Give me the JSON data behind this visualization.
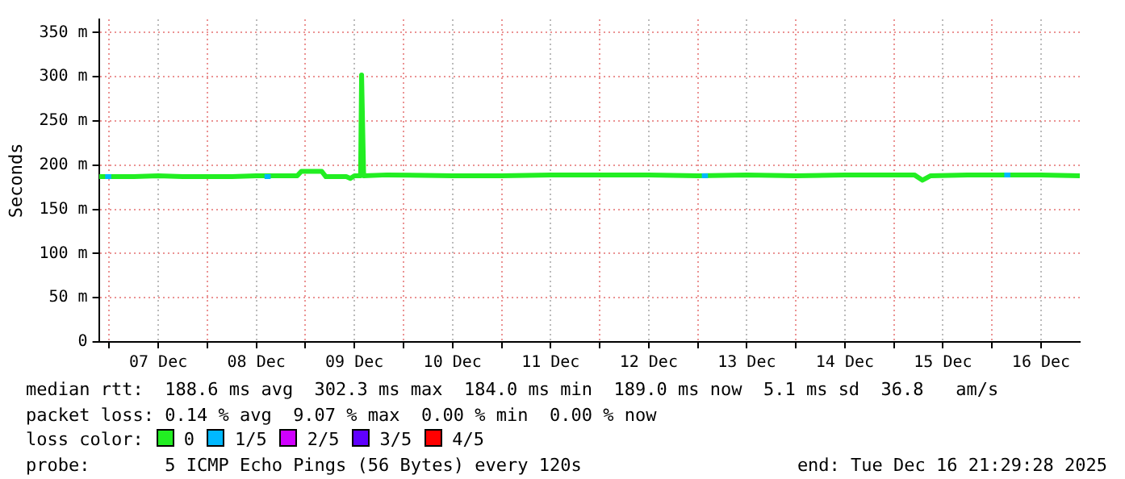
{
  "chart_data": {
    "type": "line",
    "ylabel": "Seconds",
    "legend": "bottom",
    "legend_title": "loss color:",
    "grid": true,
    "marker": "none",
    "line_style": "solid",
    "xlim": [
      "2025-12-06T21:29",
      "2025-12-16T21:29"
    ],
    "xticks": [
      {
        "value": "2025-12-07T00:00",
        "label": null
      },
      {
        "value": "2025-12-07T12:00",
        "label": "07 Dec"
      },
      {
        "value": "2025-12-08T00:00",
        "label": null
      },
      {
        "value": "2025-12-08T12:00",
        "label": "08 Dec"
      },
      {
        "value": "2025-12-09T00:00",
        "label": null
      },
      {
        "value": "2025-12-09T12:00",
        "label": "09 Dec"
      },
      {
        "value": "2025-12-10T00:00",
        "label": null
      },
      {
        "value": "2025-12-10T12:00",
        "label": "10 Dec"
      },
      {
        "value": "2025-12-11T00:00",
        "label": null
      },
      {
        "value": "2025-12-11T12:00",
        "label": "11 Dec"
      },
      {
        "value": "2025-12-12T00:00",
        "label": null
      },
      {
        "value": "2025-12-12T12:00",
        "label": "12 Dec"
      },
      {
        "value": "2025-12-13T00:00",
        "label": null
      },
      {
        "value": "2025-12-13T12:00",
        "label": "13 Dec"
      },
      {
        "value": "2025-12-14T00:00",
        "label": null
      },
      {
        "value": "2025-12-14T12:00",
        "label": "14 Dec"
      },
      {
        "value": "2025-12-15T00:00",
        "label": null
      },
      {
        "value": "2025-12-15T12:00",
        "label": "15 Dec"
      },
      {
        "value": "2025-12-16T00:00",
        "label": null
      },
      {
        "value": "2025-12-16T12:00",
        "label": "16 Dec"
      }
    ],
    "ylim": [
      0,
      365
    ],
    "yticks": [
      0,
      {
        "value": 50,
        "label": "50 m"
      },
      {
        "value": 100,
        "label": "100 m"
      },
      {
        "value": 150,
        "label": "150 m"
      },
      {
        "value": 200,
        "label": "200 m"
      },
      {
        "value": 250,
        "label": "250 m"
      },
      {
        "value": 300,
        "label": "300 m"
      },
      {
        "value": 350,
        "label": "350 m"
      }
    ],
    "series": [
      {
        "name": "0",
        "color": "#22ee22",
        "x": [
          "2025-12-06T21:30",
          "2025-12-07T06:00",
          "2025-12-07T12:00",
          "2025-12-07T18:00",
          "2025-12-08T06:00",
          "2025-12-08T12:00",
          "2025-12-08T22:00",
          "2025-12-08T23:00",
          "2025-12-09T04:00",
          "2025-12-09T05:00",
          "2025-12-09T10:00",
          "2025-12-09T11:00",
          "2025-12-09T12:00",
          "2025-12-09T13:30",
          "2025-12-09T13:45",
          "2025-12-09T14:15",
          "2025-12-09T20:00",
          "2025-12-10T12:00",
          "2025-12-11T00:00",
          "2025-12-11T12:00",
          "2025-12-12T00:00",
          "2025-12-12T12:00",
          "2025-12-13T00:00",
          "2025-12-13T12:00",
          "2025-12-14T00:00",
          "2025-12-14T12:00",
          "2025-12-15T00:00",
          "2025-12-15T05:00",
          "2025-12-15T07:00",
          "2025-12-15T09:00",
          "2025-12-15T18:00",
          "2025-12-16T12:00",
          "2025-12-16T21:29"
        ],
        "values": [
          187,
          187,
          188,
          187,
          187,
          188,
          188,
          193,
          193,
          187,
          187,
          185,
          188,
          188,
          302,
          188,
          189,
          188,
          188,
          189,
          189,
          189,
          188,
          189,
          188,
          189,
          189,
          189,
          183,
          188,
          189,
          189,
          188
        ]
      },
      {
        "name": "1/5",
        "color": "#00b8ff",
        "x": [
          "2025-12-06T23:00",
          "2025-12-07T00:30",
          "2025-12-07T01:00",
          "2025-12-08T14:00",
          "2025-12-08T15:30",
          "2025-12-08T16:00",
          "2025-12-13T01:00",
          "2025-12-13T02:30",
          "2025-12-13T03:00",
          "2025-12-16T03:00",
          "2025-12-16T04:30"
        ],
        "values": [
          187,
          187,
          null,
          187,
          187,
          null,
          188,
          188,
          null,
          189,
          189
        ]
      },
      {
        "name": "2/5",
        "color": "#d000ff"
      },
      {
        "name": "3/5",
        "color": "#6000ff"
      },
      {
        "name": "4/5",
        "color": "#ff0000"
      }
    ],
    "annotations": [
      "median rtt:  188.6 ms avg  302.3 ms max  184.0 ms min  189.0 ms now  5.1 ms sd  36.8   am/s",
      "packet loss: 0.14 % avg  9.07 % max  0.00 % min  0.00 % now",
      "probe:       5 ICMP Echo Pings (56 Bytes) every 120s",
      "end: Tue Dec 16 21:29:28 2025"
    ]
  }
}
